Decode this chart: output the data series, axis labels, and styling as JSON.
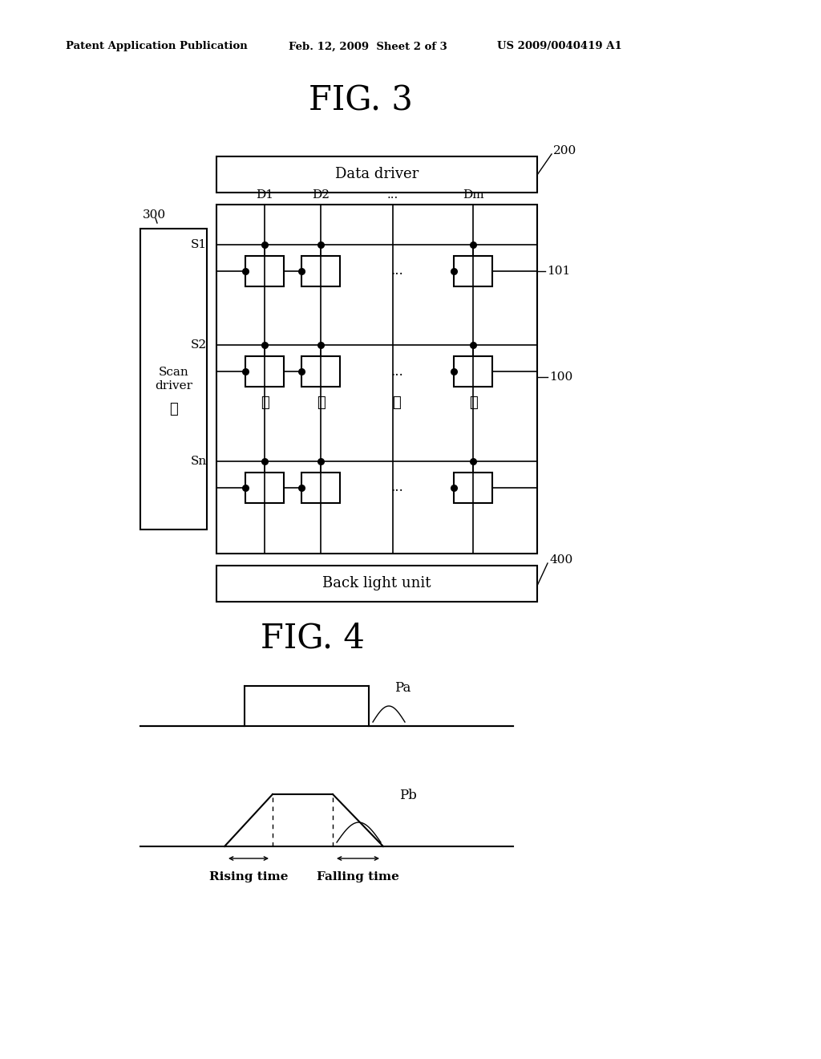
{
  "bg_color": "#ffffff",
  "header_left": "Patent Application Publication",
  "header_mid": "Feb. 12, 2009  Sheet 2 of 3",
  "header_right": "US 2009/0040419 A1",
  "fig3_title": "FIG. 3",
  "fig4_title": "FIG. 4",
  "data_driver_label": "Data driver",
  "scan_driver_label": "Scan\ndriver",
  "back_light_label": "Back light unit",
  "label_200": "200",
  "label_300": "300",
  "label_400": "400",
  "label_100": "100",
  "label_101": "101",
  "col_labels": [
    "D1",
    "D2",
    "...",
    "Dm"
  ],
  "row_labels": [
    "S1",
    "S2",
    "Sn"
  ],
  "label_Pa": "Pa",
  "label_Pb": "Pb",
  "label_rising": "Rising time",
  "label_falling": "Falling time"
}
